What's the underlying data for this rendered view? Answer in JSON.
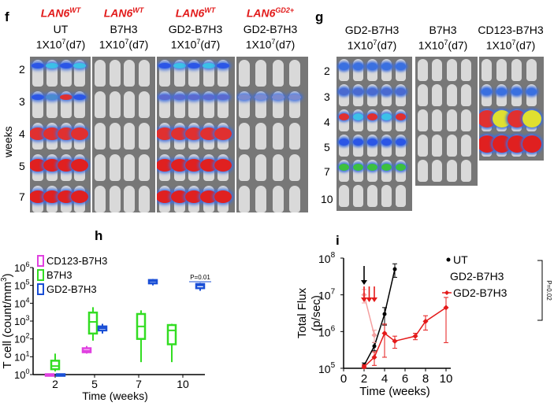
{
  "panel_f": {
    "label": "f",
    "columns": [
      {
        "genotype": "LAN6",
        "superscript": "WT",
        "treatment": "UT",
        "dose": "1X10",
        "dose_exp": "7",
        "day": "(d7)"
      },
      {
        "genotype": "LAN6",
        "superscript": "WT",
        "treatment": "B7H3",
        "dose": "1X10",
        "dose_exp": "7",
        "day": "(d7)"
      },
      {
        "genotype": "LAN6",
        "superscript": "WT",
        "treatment": "GD2-B7H3",
        "dose": "1X10",
        "dose_exp": "7",
        "day": "(d7)"
      },
      {
        "genotype": "LAN6",
        "superscript": "GD2+",
        "treatment": "GD2-B7H3",
        "dose": "1X10",
        "dose_exp": "7",
        "day": "(d7)"
      }
    ],
    "weeks_label": "weeks",
    "weeks": [
      "2",
      "3",
      "4",
      "5",
      "7"
    ]
  },
  "panel_g": {
    "label": "g",
    "columns": [
      {
        "treatment": "GD2-B7H3",
        "dose": "1X10",
        "dose_exp": "7",
        "day": "(d7)"
      },
      {
        "treatment": "B7H3",
        "dose": "1X10",
        "dose_exp": "7",
        "day": "(d7)"
      },
      {
        "treatment": "CD123-B7H3",
        "dose": "1X10",
        "dose_exp": "7",
        "day": "(d7)"
      }
    ],
    "weeks": [
      "2",
      "3",
      "4",
      "5",
      "7",
      "10"
    ]
  },
  "panel_h": {
    "label": "h",
    "chart_data": {
      "type": "box",
      "xlabel": "Time (weeks)",
      "ylabel": "T cell (count/mm³)",
      "ylabel_parts": [
        "T cell (count/mm",
        "3",
        ")"
      ],
      "y_scale": "log",
      "ylim": [
        1,
        1000000
      ],
      "y_ticks": [
        {
          "base": "10",
          "exp": "0"
        },
        {
          "base": "10",
          "exp": "1"
        },
        {
          "base": "10",
          "exp": "2"
        },
        {
          "base": "10",
          "exp": "3"
        },
        {
          "base": "10",
          "exp": "4"
        },
        {
          "base": "10",
          "exp": "5"
        },
        {
          "base": "10",
          "exp": "6"
        }
      ],
      "x_ticks": [
        "2",
        "5",
        "7",
        "10"
      ],
      "legend": [
        {
          "name": "CD123-B7H3",
          "color": "#e040e0"
        },
        {
          "name": "B7H3",
          "color": "#33dd22"
        },
        {
          "name": "GD2-B7H3",
          "color": "#1a4fd6"
        }
      ],
      "annotation": "P=0.01",
      "series": [
        {
          "name": "CD123-B7H3",
          "color": "#e040e0",
          "boxes": [
            {
              "week": 2,
              "min": 0.9,
              "q1": 0.95,
              "median": 1,
              "q3": 1.05,
              "max": 1.1
            },
            {
              "week": 5,
              "min": 15,
              "q1": 18,
              "median": 22,
              "q3": 30,
              "max": 40
            }
          ]
        },
        {
          "name": "B7H3",
          "color": "#33dd22",
          "boxes": [
            {
              "week": 2,
              "min": 1.5,
              "q1": 2,
              "median": 3,
              "q3": 6,
              "max": 15
            },
            {
              "week": 5,
              "min": 80,
              "q1": 200,
              "median": 900,
              "q3": 3000,
              "max": 6000
            },
            {
              "week": 7,
              "min": 5,
              "q1": 100,
              "median": 500,
              "q3": 2500,
              "max": 4000
            },
            {
              "week": 10,
              "min": 5,
              "q1": 50,
              "median": 300,
              "q3": 600,
              "max": 700
            }
          ]
        },
        {
          "name": "GD2-B7H3",
          "color": "#1a4fd6",
          "boxes": [
            {
              "week": 2,
              "min": 0.9,
              "q1": 0.95,
              "median": 1,
              "q3": 1.05,
              "max": 1.1
            },
            {
              "week": 5,
              "min": 200,
              "q1": 300,
              "median": 400,
              "q3": 500,
              "max": 700
            },
            {
              "week": 7,
              "min": 100000,
              "q1": 130000,
              "median": 170000,
              "q3": 200000,
              "max": 230000
            },
            {
              "week": 10,
              "min": 50000,
              "q1": 70000,
              "median": 100000,
              "q3": 120000,
              "max": 140000
            }
          ]
        }
      ]
    }
  },
  "panel_i": {
    "label": "i",
    "chart_data": {
      "type": "line",
      "xlabel": "Time (weeks)",
      "ylabel": "Total Flux (p/sec)",
      "y_scale": "log",
      "ylim": [
        100000,
        100000000
      ],
      "xlim": [
        0,
        10
      ],
      "y_ticks": [
        {
          "base": "10",
          "exp": "5"
        },
        {
          "base": "10",
          "exp": "6"
        },
        {
          "base": "10",
          "exp": "7"
        },
        {
          "base": "10",
          "exp": "8"
        }
      ],
      "x_ticks": [
        "0",
        "2",
        "4",
        "6",
        "8",
        "10"
      ],
      "annotation": "P=0.02",
      "legend": [
        {
          "name": "UT",
          "color": "#000000"
        },
        {
          "name": "GD2-B7H3",
          "color": "#000000"
        },
        {
          "name": "GD2-B7H3",
          "color": "#e41a1a"
        }
      ],
      "arrows": [
        {
          "week": 2,
          "color": "#000000"
        },
        {
          "week": 2,
          "color": "#e41a1a"
        },
        {
          "week": 2.5,
          "color": "#e41a1a"
        },
        {
          "week": 3,
          "color": "#e41a1a"
        }
      ],
      "series": [
        {
          "name": "UT",
          "color": "#000000",
          "x": [
            2,
            3,
            4,
            5
          ],
          "y": [
            120000,
            400000,
            3000000,
            50000000
          ],
          "err": [
            20000,
            100000,
            1500000,
            20000000
          ]
        },
        {
          "name": "GD2-B7H3",
          "color": "#e41a1a",
          "x": [
            2,
            3,
            4,
            5,
            7,
            8,
            10
          ],
          "y": [
            110000,
            200000,
            900000,
            550000,
            750000,
            1900000,
            4500000
          ],
          "err": [
            15000,
            80000,
            700000,
            200000,
            150000,
            800000,
            4000000
          ]
        },
        {
          "name": "GD2-B7H3 (faded)",
          "color": "#f4a0a0",
          "x": [
            2,
            3
          ],
          "y": [
            10000000,
            800000
          ],
          "err": [
            4000000,
            300000
          ]
        }
      ]
    }
  }
}
